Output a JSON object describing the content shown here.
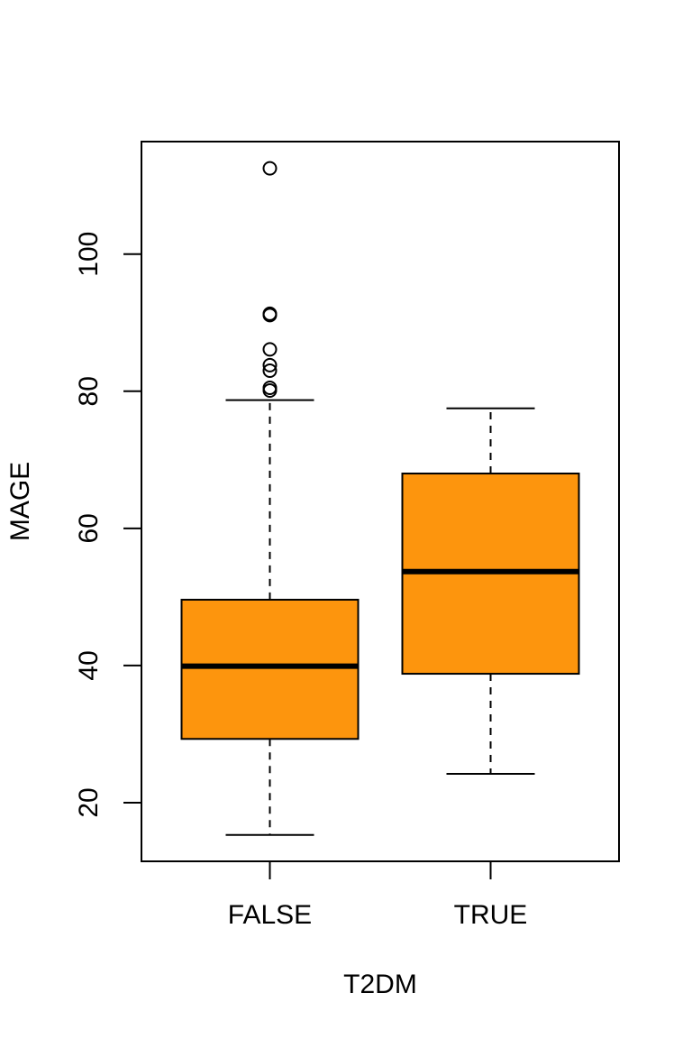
{
  "chart_data": {
    "type": "box",
    "xlabel": "T2DM",
    "ylabel": "MAGE",
    "categories": [
      "FALSE",
      "TRUE"
    ],
    "color": "#fd950d",
    "boxes": [
      {
        "whisker_low": 15.3,
        "q1": 29.3,
        "median": 39.9,
        "q3": 49.6,
        "whisker_high": 78.7,
        "outliers": [
          112.5,
          91.3,
          91.1,
          86.1,
          83.8,
          83.0,
          80.5,
          80.1
        ]
      },
      {
        "whisker_low": 24.2,
        "q1": 38.8,
        "median": 53.7,
        "q3": 68.0,
        "whisker_high": 77.5,
        "outliers": []
      }
    ],
    "ylim": [
      11.45,
      116.4
    ],
    "yticks": [
      20,
      40,
      60,
      80,
      100
    ]
  }
}
